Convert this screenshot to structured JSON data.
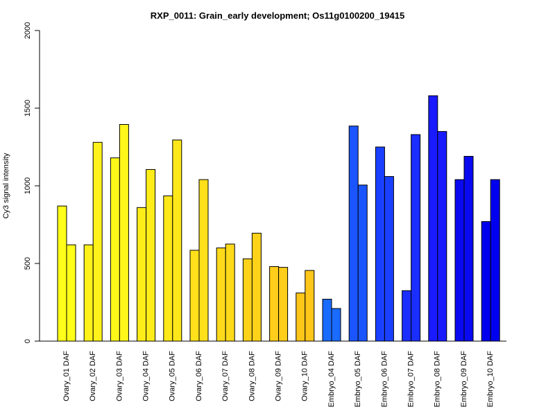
{
  "chart_data": {
    "type": "bar",
    "title": "RXP_0011: Grain_early development; Os11g0100200_19415",
    "xlabel": "",
    "ylabel": "Cy3 signal intensity",
    "ylim": [
      0,
      2000
    ],
    "yticks": [
      0,
      500,
      1000,
      1500,
      2000
    ],
    "grid": false,
    "legend": "none",
    "categories": [
      "Ovary_01 DAF",
      "Ovary_02 DAF",
      "Ovary_03 DAF",
      "Ovary_04 DAF",
      "Ovary_05 DAF",
      "Ovary_06 DAF",
      "Ovary_07 DAF",
      "Ovary_08 DAF",
      "Ovary_09 DAF",
      "Ovary_10 DAF",
      "Embryo_04 DAF",
      "Embryo_05 DAF",
      "Embryo_06 DAF",
      "Embryo_07 DAF",
      "Embryo_08 DAF",
      "Embryo_09 DAF",
      "Embryo_10 DAF"
    ],
    "series": [
      {
        "values": [
          870,
          620,
          1180,
          860,
          935,
          585,
          600,
          530,
          480,
          310,
          270,
          1385,
          1250,
          325,
          1580,
          1040,
          770
        ]
      },
      {
        "values": [
          620,
          1280,
          1395,
          1105,
          1295,
          1040,
          625,
          695,
          475,
          455,
          210,
          1005,
          1060,
          1330,
          1350,
          1190,
          1040
        ]
      }
    ],
    "colors": [
      "#FFFF1A",
      "#FFF21A",
      "#FFF61A",
      "#FFED1A",
      "#FFE81A",
      "#FFE01A",
      "#FFDA1A",
      "#FFD21A",
      "#FFCD1A",
      "#FFC61A",
      "#1A6BFF",
      "#1A55FF",
      "#1A40FF",
      "#1A2EFF",
      "#1A1AFF",
      "#0A0AF0",
      "#0000EE"
    ]
  }
}
